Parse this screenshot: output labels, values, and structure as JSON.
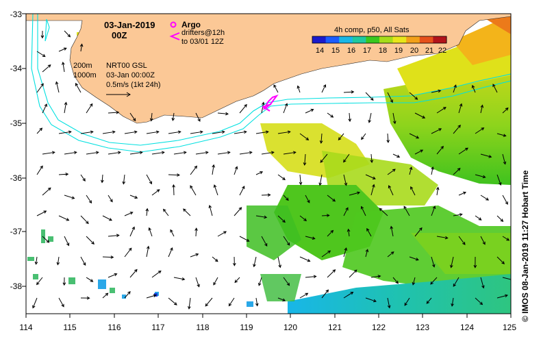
{
  "title": {
    "date": "03-Jan-2019",
    "time": "00Z"
  },
  "legend": {
    "argo_label": "Argo",
    "drifters_line1": "drifters@12h",
    "drifters_line2": "to 03/01 12Z",
    "colorbar_title": "4h comp, p50, All Sats",
    "colorbar_ticks": [
      "14",
      "15",
      "16",
      "17",
      "18",
      "19",
      "20",
      "21",
      "22"
    ],
    "colorbar_colors": [
      "#1a1acc",
      "#1a5cff",
      "#19b7e6",
      "#1fc9a0",
      "#39c81e",
      "#a6dd19",
      "#e8e61a",
      "#f2a019",
      "#e6501a",
      "#b2141a"
    ],
    "contour_200": "200m",
    "contour_1000": "1000m",
    "model": "NRT00 GSL",
    "model_time": "03-Jan 00:00Z",
    "scale_label": "0.5m/s (1kt 24h)"
  },
  "axes": {
    "lon_ticks": [
      "114",
      "115",
      "116",
      "117",
      "118",
      "119",
      "120",
      "121",
      "122",
      "123",
      "124",
      "125"
    ],
    "lat_ticks": [
      "-33",
      "-34",
      "-35",
      "-36",
      "-37",
      "-38"
    ],
    "lon_range": [
      114,
      125
    ],
    "lat_range": [
      -38.5,
      -33
    ]
  },
  "credit": "© IMOS 08-Jan-2019 11:27 Hobart Time",
  "colors": {
    "land": "#fbc896",
    "contour": "#00e0e0",
    "argo": "#ff00ff",
    "drifter": "#ff00ff"
  }
}
